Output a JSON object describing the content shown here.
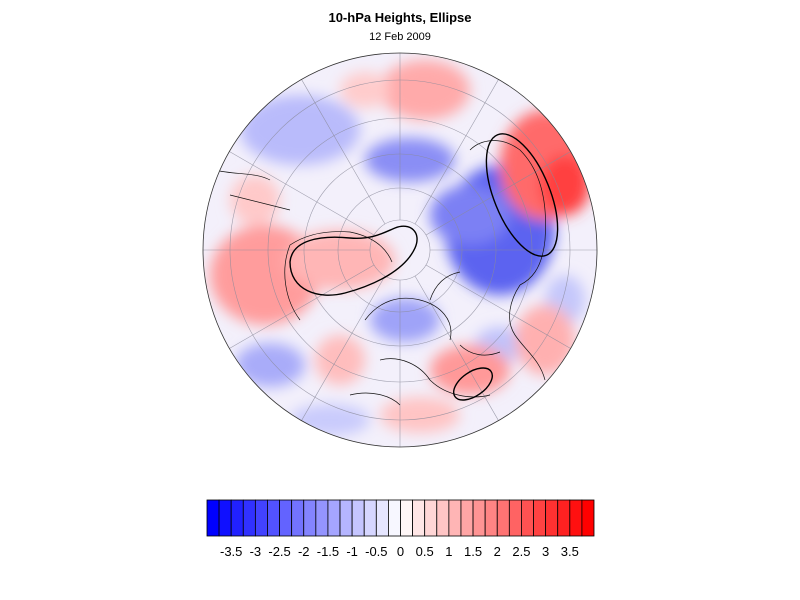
{
  "header": {
    "title": "10-hPa Heights, Ellipse",
    "date": "12 Feb 2009"
  },
  "colorbar": {
    "labels": [
      "-3.5",
      "-3",
      "-2.5",
      "-2",
      "-1.5",
      "-1",
      "-0.5",
      "0",
      "0.5",
      "1",
      "1.5",
      "2",
      "2.5",
      "3",
      "3.5"
    ],
    "min": -4,
    "max": 4,
    "step": 0.25,
    "negative_color": "#0000ff",
    "positive_color": "#ff0000",
    "neutral_color": "#ffffff"
  },
  "map": {
    "projection": "north-polar-stereographic",
    "field": "10-hPa height anomaly",
    "features": [
      "polar-vortex-ellipse",
      "coastlines",
      "graticule"
    ]
  }
}
